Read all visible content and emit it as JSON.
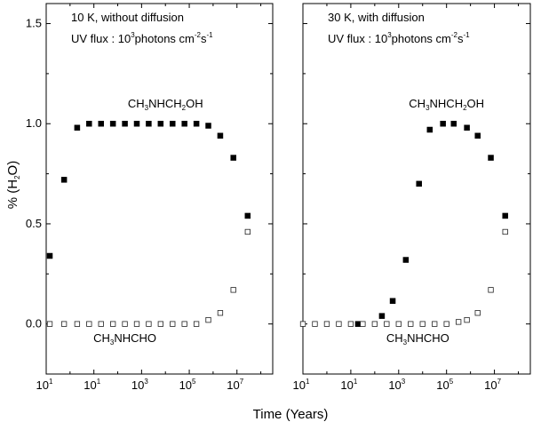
{
  "chart_data": {
    "type": "scatter",
    "ylabel": "% (H₂O)",
    "xlabel": "Time (Years)",
    "ylim": [
      -0.25,
      1.6
    ],
    "xlim_log10": [
      -1,
      8.5
    ],
    "y_ticks": [
      {
        "value": 0.0,
        "label": "0.0"
      },
      {
        "value": 0.5,
        "label": "0.5"
      },
      {
        "value": 1.0,
        "label": "1.0"
      },
      {
        "value": 1.5,
        "label": "1.5"
      }
    ],
    "x_tick_exponents": [
      "1",
      "1",
      "3",
      "5",
      "7"
    ],
    "panels": [
      {
        "title_line1": "10 K, without diffusion",
        "title_line2_prefix": "UV flux : 10",
        "title_line2_exp": "3",
        "title_line2_mid": "photons cm",
        "title_line2_exp2": "-2",
        "title_line2_s": "s",
        "title_line2_exp3": "-1",
        "series": [
          {
            "name": "CH3NHCH2OH",
            "label_parts": [
              "CH",
              "3",
              "NHCH",
              "2",
              "OH"
            ],
            "label_at": {
              "log10_t": 4.0,
              "y": 1.08
            },
            "marker": "filled-square",
            "points": [
              {
                "log10_t": -0.85,
                "y": 0.34
              },
              {
                "log10_t": -0.25,
                "y": 0.72
              },
              {
                "log10_t": 0.3,
                "y": 0.98
              },
              {
                "log10_t": 0.8,
                "y": 1.0
              },
              {
                "log10_t": 1.3,
                "y": 1.0
              },
              {
                "log10_t": 1.8,
                "y": 1.0
              },
              {
                "log10_t": 2.3,
                "y": 1.0
              },
              {
                "log10_t": 2.8,
                "y": 1.0
              },
              {
                "log10_t": 3.3,
                "y": 1.0
              },
              {
                "log10_t": 3.8,
                "y": 1.0
              },
              {
                "log10_t": 4.3,
                "y": 1.0
              },
              {
                "log10_t": 4.8,
                "y": 1.0
              },
              {
                "log10_t": 5.3,
                "y": 1.0
              },
              {
                "log10_t": 5.8,
                "y": 0.99
              },
              {
                "log10_t": 6.3,
                "y": 0.94
              },
              {
                "log10_t": 6.85,
                "y": 0.83
              },
              {
                "log10_t": 7.45,
                "y": 0.54
              }
            ]
          },
          {
            "name": "CH3NHCHO",
            "label_parts": [
              "CH",
              "3",
              "NHCHO"
            ],
            "label_at": {
              "log10_t": 2.3,
              "y": -0.09
            },
            "marker": "open-square",
            "points": [
              {
                "log10_t": -0.85,
                "y": 0.0
              },
              {
                "log10_t": -0.25,
                "y": 0.0
              },
              {
                "log10_t": 0.3,
                "y": 0.0
              },
              {
                "log10_t": 0.8,
                "y": 0.0
              },
              {
                "log10_t": 1.3,
                "y": 0.0
              },
              {
                "log10_t": 1.8,
                "y": 0.0
              },
              {
                "log10_t": 2.3,
                "y": 0.0
              },
              {
                "log10_t": 2.8,
                "y": 0.0
              },
              {
                "log10_t": 3.3,
                "y": 0.0
              },
              {
                "log10_t": 3.8,
                "y": 0.0
              },
              {
                "log10_t": 4.3,
                "y": 0.0
              },
              {
                "log10_t": 4.8,
                "y": 0.0
              },
              {
                "log10_t": 5.3,
                "y": 0.0
              },
              {
                "log10_t": 5.8,
                "y": 0.02
              },
              {
                "log10_t": 6.3,
                "y": 0.055
              },
              {
                "log10_t": 6.85,
                "y": 0.17
              },
              {
                "log10_t": 7.45,
                "y": 0.46
              }
            ]
          }
        ]
      },
      {
        "title_line1": "30 K, with diffusion",
        "title_line2_prefix": "UV flux : 10",
        "title_line2_exp": "3",
        "title_line2_mid": "photons cm",
        "title_line2_exp2": "-2",
        "title_line2_s": "s",
        "title_line2_exp3": "-1",
        "series": [
          {
            "name": "CH3NHCH2OH",
            "label_parts": [
              "CH",
              "3",
              "NHCH",
              "2",
              "OH"
            ],
            "label_at": {
              "log10_t": 5.0,
              "y": 1.08
            },
            "marker": "filled-square",
            "points": [
              {
                "log10_t": 1.3,
                "y": 0.0
              },
              {
                "log10_t": 2.3,
                "y": 0.04
              },
              {
                "log10_t": 2.75,
                "y": 0.115
              },
              {
                "log10_t": 3.3,
                "y": 0.32
              },
              {
                "log10_t": 3.85,
                "y": 0.7
              },
              {
                "log10_t": 4.3,
                "y": 0.97
              },
              {
                "log10_t": 4.85,
                "y": 1.0
              },
              {
                "log10_t": 5.3,
                "y": 1.0
              },
              {
                "log10_t": 5.85,
                "y": 0.98
              },
              {
                "log10_t": 6.3,
                "y": 0.94
              },
              {
                "log10_t": 6.85,
                "y": 0.83
              },
              {
                "log10_t": 7.45,
                "y": 0.54
              }
            ]
          },
          {
            "name": "CH3NHCHO",
            "label_parts": [
              "CH",
              "3",
              "NHCHO"
            ],
            "label_at": {
              "log10_t": 3.8,
              "y": -0.09
            },
            "marker": "open-square",
            "points": [
              {
                "log10_t": -1.0,
                "y": 0.0
              },
              {
                "log10_t": -0.5,
                "y": 0.0
              },
              {
                "log10_t": 0.0,
                "y": 0.0
              },
              {
                "log10_t": 0.5,
                "y": 0.0
              },
              {
                "log10_t": 1.0,
                "y": 0.0
              },
              {
                "log10_t": 1.5,
                "y": 0.0
              },
              {
                "log10_t": 2.0,
                "y": 0.0
              },
              {
                "log10_t": 2.5,
                "y": 0.0
              },
              {
                "log10_t": 3.0,
                "y": 0.0
              },
              {
                "log10_t": 3.5,
                "y": 0.0
              },
              {
                "log10_t": 4.0,
                "y": 0.0
              },
              {
                "log10_t": 4.5,
                "y": 0.0
              },
              {
                "log10_t": 5.0,
                "y": 0.0
              },
              {
                "log10_t": 5.5,
                "y": 0.01
              },
              {
                "log10_t": 5.85,
                "y": 0.02
              },
              {
                "log10_t": 6.3,
                "y": 0.055
              },
              {
                "log10_t": 6.85,
                "y": 0.17
              },
              {
                "log10_t": 7.45,
                "y": 0.46
              }
            ]
          }
        ]
      }
    ]
  }
}
